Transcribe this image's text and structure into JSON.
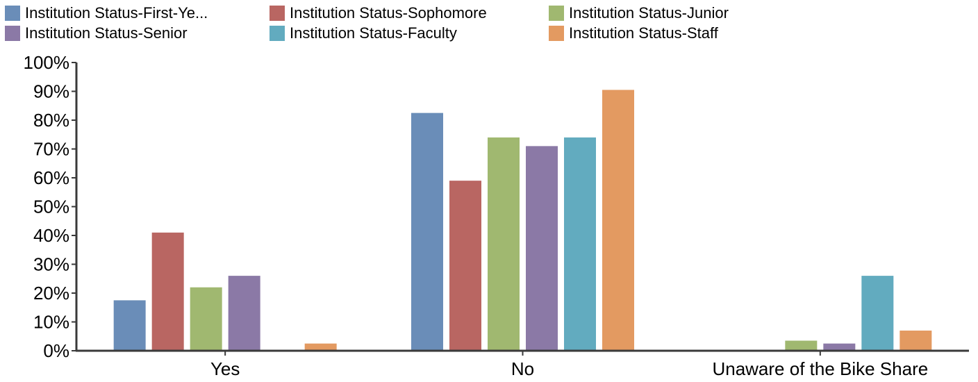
{
  "chart_data": {
    "type": "bar",
    "title": "",
    "xlabel": "",
    "ylabel": "",
    "categories": [
      "Yes",
      "No",
      "Unaware of the Bike Share"
    ],
    "series": [
      {
        "name": "Institution Status-First-Ye...",
        "color": "#6a8db8",
        "values": [
          17.5,
          82.5,
          null
        ]
      },
      {
        "name": "Institution Status-Sophomore",
        "color": "#b96662",
        "values": [
          41,
          59,
          null
        ]
      },
      {
        "name": "Institution Status-Junior",
        "color": "#a0b870",
        "values": [
          22,
          74,
          3.5
        ]
      },
      {
        "name": "Institution Status-Senior",
        "color": "#8b79a6",
        "values": [
          26,
          71,
          2.5
        ]
      },
      {
        "name": "Institution Status-Faculty",
        "color": "#62abbf",
        "values": [
          null,
          74,
          26
        ]
      },
      {
        "name": "Institution Status-Staff",
        "color": "#e39a61",
        "values": [
          2.5,
          90.5,
          7
        ]
      }
    ],
    "ylim": [
      0,
      100
    ],
    "yticks": [
      "0%",
      "10%",
      "20%",
      "30%",
      "40%",
      "50%",
      "60%",
      "70%",
      "80%",
      "90%",
      "100%"
    ],
    "grid": false,
    "legend_position": "top"
  }
}
